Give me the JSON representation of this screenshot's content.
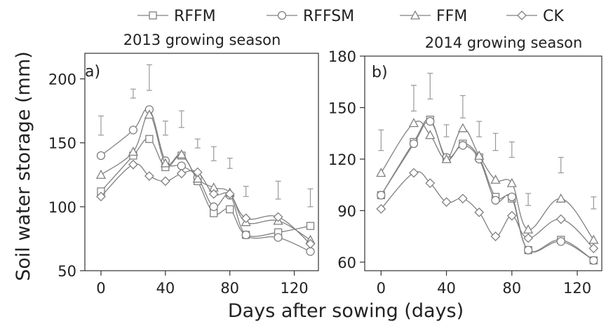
{
  "figure": {
    "xlabel": "Days after sowing (days)",
    "ylabel": "Soil water storage (mm)",
    "colors": {
      "series": "#808080",
      "axis": "#333333",
      "errorbar": "#999999"
    }
  },
  "legend": [
    {
      "name": "RFFM",
      "marker": "square"
    },
    {
      "name": "RFFSM",
      "marker": "circle"
    },
    {
      "name": "FFM",
      "marker": "triangle"
    },
    {
      "name": "CK",
      "marker": "diamond"
    }
  ],
  "chart_data": [
    {
      "type": "line",
      "panel_label": "a)",
      "title": "2013 growing season",
      "xlabel": "Days after sowing (days)",
      "ylabel": "Soil water storage (mm)",
      "xlim": [
        -10,
        135
      ],
      "ylim": [
        50,
        220
      ],
      "x_ticks": [
        0,
        40,
        80,
        120
      ],
      "y_ticks": [
        50,
        100,
        150,
        200
      ],
      "x": [
        0,
        20,
        30,
        40,
        50,
        60,
        70,
        80,
        90,
        110,
        130
      ],
      "series": [
        {
          "name": "RFFM",
          "marker": "square",
          "values": [
            112,
            140,
            153,
            131,
            140,
            120,
            95,
            98,
            78,
            80,
            85
          ]
        },
        {
          "name": "RFFSM",
          "marker": "circle",
          "values": [
            140,
            160,
            176,
            136,
            132,
            123,
            100,
            109,
            78,
            76,
            65
          ]
        },
        {
          "name": "FFM",
          "marker": "triangle",
          "values": [
            125,
            143,
            172,
            134,
            141,
            122,
            115,
            111,
            88,
            89,
            74
          ]
        },
        {
          "name": "CK",
          "marker": "diamond",
          "values": [
            108,
            133,
            124,
            120,
            126,
            127,
            110,
            110,
            91,
            92,
            71
          ]
        }
      ],
      "error_bars": [
        {
          "x": 0,
          "low": 156,
          "high": 171
        },
        {
          "x": 20,
          "low": 185,
          "high": 192
        },
        {
          "x": 30,
          "low": 191,
          "high": 211
        },
        {
          "x": 40,
          "low": 156,
          "high": 167
        },
        {
          "x": 50,
          "low": 162,
          "high": 175
        },
        {
          "x": 60,
          "low": 146,
          "high": 153
        },
        {
          "x": 70,
          "low": 136,
          "high": 147
        },
        {
          "x": 80,
          "low": 130,
          "high": 138
        },
        {
          "x": 90,
          "low": 108,
          "high": 116
        },
        {
          "x": 110,
          "low": 106,
          "high": 120
        },
        {
          "x": 130,
          "low": 100,
          "high": 114
        }
      ]
    },
    {
      "type": "line",
      "panel_label": "b)",
      "title": "2014 growing season",
      "xlabel": "Days after sowing (days)",
      "ylabel": "",
      "xlim": [
        -10,
        135
      ],
      "ylim": [
        55,
        180
      ],
      "x_ticks": [
        0,
        40,
        80,
        120
      ],
      "y_ticks": [
        60,
        90,
        120,
        150,
        180
      ],
      "x": [
        0,
        20,
        30,
        40,
        50,
        60,
        70,
        80,
        90,
        110,
        130
      ],
      "series": [
        {
          "name": "RFFM",
          "marker": "square",
          "values": [
            99,
            130,
            143,
            120,
            129,
            121,
            98,
            97,
            67,
            73,
            61
          ]
        },
        {
          "name": "RFFSM",
          "marker": "circle",
          "values": [
            99,
            129,
            142,
            121,
            128,
            120,
            96,
            98,
            67,
            72,
            61
          ]
        },
        {
          "name": "FFM",
          "marker": "triangle",
          "values": [
            112,
            141,
            134,
            120,
            138,
            122,
            108,
            106,
            79,
            97,
            73
          ]
        },
        {
          "name": "CK",
          "marker": "diamond",
          "values": [
            91,
            112,
            106,
            95,
            97,
            89,
            75,
            87,
            74,
            85,
            68
          ]
        }
      ],
      "error_bars": [
        {
          "x": 0,
          "low": 125,
          "high": 137
        },
        {
          "x": 20,
          "low": 148,
          "high": 163
        },
        {
          "x": 30,
          "low": 155,
          "high": 170
        },
        {
          "x": 40,
          "low": 133,
          "high": 140
        },
        {
          "x": 50,
          "low": 144,
          "high": 157
        },
        {
          "x": 60,
          "low": 133,
          "high": 142
        },
        {
          "x": 70,
          "low": 125,
          "high": 135
        },
        {
          "x": 80,
          "low": 121,
          "high": 130
        },
        {
          "x": 90,
          "low": 93,
          "high": 100
        },
        {
          "x": 110,
          "low": 112,
          "high": 121
        },
        {
          "x": 130,
          "low": 91,
          "high": 98
        }
      ]
    }
  ]
}
